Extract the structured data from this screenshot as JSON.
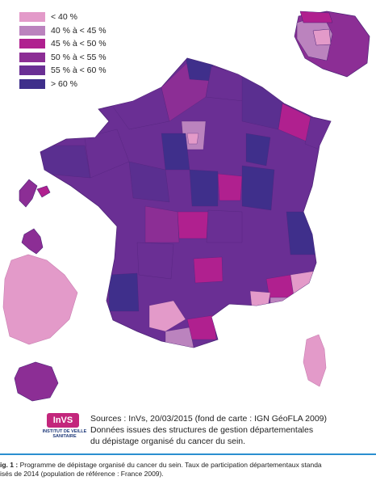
{
  "legend": [
    {
      "label": "< 40 %",
      "color": "#e39ac9"
    },
    {
      "label": "40 % à < 45 %",
      "color": "#bb83be"
    },
    {
      "label": "45 % à < 50 %",
      "color": "#b0208f"
    },
    {
      "label": "50 % à < 55 %",
      "color": "#8c2e95"
    },
    {
      "label": "55 % à < 60 %",
      "color": "#6a2f94"
    },
    {
      "label": "> 60 %",
      "color": "#3f2f8b"
    }
  ],
  "logo": {
    "text": "InVS",
    "name": "INSTITUT DE VEILLE SANITAIRE"
  },
  "sources": {
    "line1": "Sources : InVs, 20/03/2015 (fond de carte : IGN GéoFLA 2009)",
    "line2": "Données issues des structures de gestion départementales",
    "line3": "du dépistage organisé du cancer du sein."
  },
  "caption": {
    "fig_label": "ig. 1 :",
    "line1": "Programme de dépistage organisé du cancer du sein. Taux de participation départementaux standa",
    "line2": "isés de 2014 (population de référence : France 2009)."
  }
}
